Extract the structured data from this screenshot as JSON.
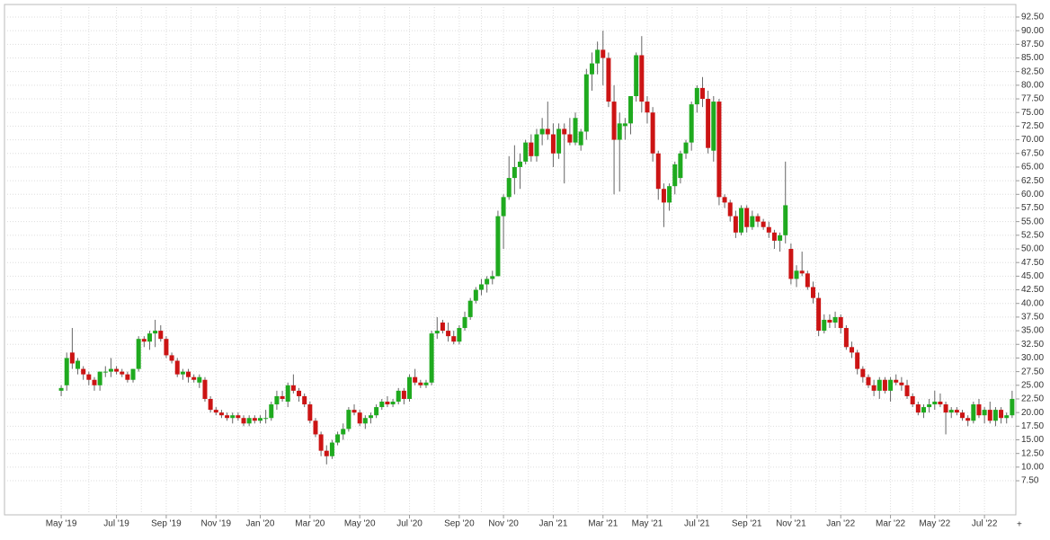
{
  "chart_data": {
    "type": "candlestick",
    "up_color": "#1faa1f",
    "down_color": "#cc1414",
    "wick_color": "#666666",
    "grid": true,
    "ylim": [
      1.25,
      94.8
    ],
    "yticks": [
      {
        "value": 7.5,
        "label": "7.50"
      },
      {
        "value": 10,
        "label": "10.00"
      },
      {
        "value": 12.5,
        "label": "12.50"
      },
      {
        "value": 15,
        "label": "15.00"
      },
      {
        "value": 17.5,
        "label": "17.50"
      },
      {
        "value": 20,
        "label": "20.00"
      },
      {
        "value": 22.5,
        "label": "22.50"
      },
      {
        "value": 25,
        "label": "25.00"
      },
      {
        "value": 27.5,
        "label": "27.50"
      },
      {
        "value": 30,
        "label": "30.00"
      },
      {
        "value": 32.5,
        "label": "32.50"
      },
      {
        "value": 35,
        "label": "35.00"
      },
      {
        "value": 37.5,
        "label": "37.50"
      },
      {
        "value": 40,
        "label": "40.00"
      },
      {
        "value": 42.5,
        "label": "42.50"
      },
      {
        "value": 45,
        "label": "45.00"
      },
      {
        "value": 47.5,
        "label": "47.50"
      },
      {
        "value": 50,
        "label": "50.00"
      },
      {
        "value": 52.5,
        "label": "52.50"
      },
      {
        "value": 55,
        "label": "55.00"
      },
      {
        "value": 57.5,
        "label": "57.50"
      },
      {
        "value": 60,
        "label": "60.00"
      },
      {
        "value": 62.5,
        "label": "62.50"
      },
      {
        "value": 65,
        "label": "65.00"
      },
      {
        "value": 67.5,
        "label": "67.50"
      },
      {
        "value": 70,
        "label": "70.00"
      },
      {
        "value": 72.5,
        "label": "72.50"
      },
      {
        "value": 75,
        "label": "75.00"
      },
      {
        "value": 77.5,
        "label": "77.50"
      },
      {
        "value": 80,
        "label": "80.00"
      },
      {
        "value": 82.5,
        "label": "82.50"
      },
      {
        "value": 85,
        "label": "85.00"
      },
      {
        "value": 87.5,
        "label": "87.50"
      },
      {
        "value": 90,
        "label": "90.00"
      },
      {
        "value": 92.5,
        "label": "92.50"
      }
    ],
    "categories": [
      "May '19",
      null,
      null,
      null,
      null,
      null,
      null,
      null,
      null,
      null,
      "Jul '19",
      null,
      null,
      null,
      null,
      null,
      null,
      null,
      null,
      "Sep '19",
      null,
      null,
      null,
      null,
      null,
      null,
      null,
      null,
      "Nov '19",
      null,
      null,
      null,
      null,
      null,
      null,
      null,
      "Jan '20",
      null,
      null,
      null,
      null,
      null,
      null,
      null,
      null,
      "Mar '20",
      null,
      null,
      null,
      null,
      null,
      null,
      null,
      null,
      "May '20",
      null,
      null,
      null,
      null,
      null,
      null,
      null,
      null,
      "Jul '20",
      null,
      null,
      null,
      null,
      null,
      null,
      null,
      null,
      "Sep '20",
      null,
      null,
      null,
      null,
      null,
      null,
      null,
      "Nov '20",
      null,
      null,
      null,
      null,
      null,
      null,
      null,
      null,
      "Jan '21",
      null,
      null,
      null,
      null,
      null,
      null,
      null,
      null,
      "Mar '21",
      null,
      null,
      null,
      null,
      null,
      null,
      null,
      "May '21",
      null,
      null,
      null,
      null,
      null,
      null,
      null,
      null,
      "Jul '21",
      null,
      null,
      null,
      null,
      null,
      null,
      null,
      null,
      "Sep '21",
      null,
      null,
      null,
      null,
      null,
      null,
      null,
      "Nov '21",
      null,
      null,
      null,
      null,
      null,
      null,
      null,
      null,
      "Jan '22",
      null,
      null,
      null,
      null,
      null,
      null,
      null,
      null,
      "Mar '22",
      null,
      null,
      null,
      null,
      null,
      null,
      null,
      "May '22",
      null,
      null,
      null,
      null,
      null,
      null,
      null,
      null,
      "Jul '22",
      null,
      null,
      null,
      null,
      null
    ],
    "ohlc": [
      [
        24,
        25,
        23,
        24.5
      ],
      [
        25,
        31,
        24,
        30
      ],
      [
        31,
        35.5,
        28,
        29
      ],
      [
        28,
        30,
        27,
        29.5
      ],
      [
        28,
        28.5,
        26,
        27
      ],
      [
        27,
        27.5,
        25,
        26
      ],
      [
        26,
        26.5,
        24,
        25
      ],
      [
        25,
        27.5,
        24,
        27.5
      ],
      [
        27.5,
        28.5,
        26.5,
        27.5
      ],
      [
        27.5,
        30,
        26.5,
        28
      ],
      [
        28,
        28.5,
        27,
        27.5
      ],
      [
        27.5,
        28,
        26.5,
        27
      ],
      [
        27,
        27.5,
        25.5,
        26
      ],
      [
        26,
        28,
        25.5,
        28
      ],
      [
        28,
        34,
        27.5,
        33.5
      ],
      [
        33.5,
        34,
        32,
        33
      ],
      [
        33,
        35,
        31.5,
        34.5
      ],
      [
        34.5,
        37,
        32,
        35
      ],
      [
        35,
        36,
        33,
        33.5
      ],
      [
        33.5,
        34,
        30,
        30.5
      ],
      [
        30.5,
        31,
        29,
        29.5
      ],
      [
        29.5,
        30,
        26.5,
        27
      ],
      [
        27,
        28,
        26,
        27.5
      ],
      [
        27.5,
        28,
        25.5,
        26.5
      ],
      [
        26.5,
        27,
        25.5,
        26
      ],
      [
        25.5,
        27,
        24.5,
        26.5
      ],
      [
        26,
        26.5,
        22,
        22.5
      ],
      [
        22.5,
        23,
        20,
        20.5
      ],
      [
        20.5,
        21,
        19.5,
        20
      ],
      [
        20,
        20.5,
        19,
        19.5
      ],
      [
        19.5,
        20,
        18.5,
        19
      ],
      [
        19,
        20,
        18,
        19.5
      ],
      [
        19.5,
        20,
        18.5,
        19
      ],
      [
        19,
        19.5,
        17.5,
        18
      ],
      [
        18,
        19.5,
        17.5,
        19
      ],
      [
        19,
        19.5,
        18,
        18.5
      ],
      [
        18.5,
        19.5,
        18,
        19
      ],
      [
        19,
        20.5,
        18,
        19
      ],
      [
        19,
        22,
        18.5,
        21.5
      ],
      [
        21.5,
        24,
        20.5,
        23
      ],
      [
        23,
        24,
        22,
        22.5
      ],
      [
        22,
        25.5,
        21,
        25
      ],
      [
        25,
        27,
        23.5,
        24
      ],
      [
        24,
        24.5,
        22,
        23
      ],
      [
        23,
        23.5,
        21,
        21.5
      ],
      [
        21.5,
        22,
        18,
        18.5
      ],
      [
        18.5,
        19,
        15.5,
        16
      ],
      [
        16,
        16.5,
        12,
        13
      ],
      [
        13,
        14,
        10.5,
        12
      ],
      [
        12,
        15,
        11.5,
        14.5
      ],
      [
        14.5,
        16.5,
        14,
        16
      ],
      [
        16,
        18,
        15,
        17
      ],
      [
        17,
        21,
        16.5,
        20.5
      ],
      [
        20.5,
        21.5,
        19.5,
        20
      ],
      [
        20,
        20.5,
        17.5,
        18
      ],
      [
        18,
        19.5,
        17,
        19
      ],
      [
        19,
        20,
        18,
        19.5
      ],
      [
        19.5,
        21.5,
        19,
        21
      ],
      [
        21,
        22.5,
        20.5,
        22
      ],
      [
        22,
        23,
        21,
        21.5
      ],
      [
        21.5,
        22.5,
        21,
        22
      ],
      [
        22,
        24.5,
        21.5,
        24
      ],
      [
        24,
        24.5,
        21.5,
        22.5
      ],
      [
        22.5,
        27,
        22,
        26.5
      ],
      [
        26.5,
        28,
        25,
        25.5
      ],
      [
        25.5,
        26,
        24.5,
        25
      ],
      [
        25,
        26,
        24.5,
        25.5
      ],
      [
        25.5,
        35,
        25,
        34.5
      ],
      [
        34.5,
        37.5,
        33.5,
        35
      ],
      [
        36.5,
        37,
        34.5,
        35
      ],
      [
        35,
        36.5,
        33,
        34
      ],
      [
        34,
        35,
        32.5,
        33
      ],
      [
        33,
        36,
        32.5,
        35.5
      ],
      [
        35.5,
        38.5,
        35,
        37.5
      ],
      [
        37.5,
        41,
        37,
        40.5
      ],
      [
        40.5,
        43,
        40,
        42.5
      ],
      [
        42.5,
        44.5,
        41.5,
        43.5
      ],
      [
        43.5,
        45,
        42,
        44.5
      ],
      [
        44.5,
        46,
        43.5,
        45
      ],
      [
        45,
        57,
        45,
        56
      ],
      [
        56,
        60,
        50,
        59.5
      ],
      [
        59.5,
        67,
        59,
        63
      ],
      [
        63,
        69,
        60,
        65
      ],
      [
        65,
        67.5,
        61,
        66
      ],
      [
        66,
        70,
        65.5,
        69.5
      ],
      [
        69.5,
        71,
        66,
        67
      ],
      [
        67,
        72,
        66,
        71
      ],
      [
        71,
        74,
        69,
        72
      ],
      [
        72,
        77,
        70,
        71
      ],
      [
        71,
        73,
        65,
        67.5
      ],
      [
        67.5,
        73,
        66.5,
        72
      ],
      [
        72,
        73,
        62,
        71
      ],
      [
        71,
        74,
        69,
        69.5
      ],
      [
        69.5,
        75,
        69,
        74
      ],
      [
        69,
        72,
        68,
        71.5
      ],
      [
        71.5,
        83,
        70,
        82
      ],
      [
        82,
        86,
        79,
        84
      ],
      [
        84,
        88,
        82,
        86.5
      ],
      [
        86.5,
        90,
        80,
        85
      ],
      [
        85,
        86,
        76,
        77
      ],
      [
        77,
        80,
        60,
        70
      ],
      [
        70,
        75,
        60.5,
        73
      ],
      [
        72.5,
        74,
        70,
        73
      ],
      [
        73,
        78,
        71,
        78
      ],
      [
        78,
        86,
        77,
        85.5
      ],
      [
        85.5,
        89,
        75,
        77
      ],
      [
        77,
        78,
        73,
        75
      ],
      [
        75,
        76,
        66,
        67.5
      ],
      [
        67.5,
        68,
        59,
        61
      ],
      [
        61,
        62,
        54,
        58.5
      ],
      [
        58.5,
        62,
        57,
        61.5
      ],
      [
        61.5,
        66,
        60,
        65.5
      ],
      [
        63,
        68,
        62,
        67.5
      ],
      [
        67.5,
        70,
        66.5,
        69.5
      ],
      [
        69.5,
        77,
        68,
        76.5
      ],
      [
        76.5,
        80,
        75,
        79.5
      ],
      [
        79.5,
        81.5,
        76,
        77.5
      ],
      [
        77.5,
        79,
        67.5,
        68.5
      ],
      [
        68,
        78,
        66,
        77
      ],
      [
        77,
        77.5,
        58,
        59.5
      ],
      [
        59.5,
        60,
        57.5,
        58.5
      ],
      [
        58.5,
        59,
        55,
        56
      ],
      [
        56,
        57,
        52,
        53
      ],
      [
        53,
        58,
        52.5,
        57.5
      ],
      [
        57.5,
        58,
        53,
        54
      ],
      [
        54,
        57,
        53.5,
        56
      ],
      [
        56,
        56.5,
        54,
        55
      ],
      [
        55,
        55.5,
        53.5,
        54
      ],
      [
        54,
        55,
        52,
        53
      ],
      [
        53,
        53.5,
        50,
        51.5
      ],
      [
        51.5,
        53,
        49.5,
        52.5
      ],
      [
        52.5,
        66,
        51,
        58
      ],
      [
        50,
        51,
        43.5,
        44.5
      ],
      [
        44.5,
        47,
        43,
        46
      ],
      [
        46,
        49.5,
        45,
        45.5
      ],
      [
        45.5,
        46,
        42.5,
        43
      ],
      [
        43,
        44,
        40,
        41
      ],
      [
        41,
        42,
        34,
        35
      ],
      [
        35,
        38,
        34.5,
        37
      ],
      [
        37,
        38,
        35.5,
        36.5
      ],
      [
        36.5,
        38.5,
        35.5,
        37.5
      ],
      [
        37.5,
        38,
        34.5,
        35.5
      ],
      [
        35.5,
        36,
        31.5,
        32
      ],
      [
        32,
        33,
        30,
        31
      ],
      [
        31,
        31.5,
        27,
        28
      ],
      [
        28,
        28.5,
        25.5,
        26.5
      ],
      [
        26.5,
        27,
        24.5,
        25
      ],
      [
        25,
        26,
        23,
        24
      ],
      [
        24,
        26.5,
        22.5,
        26
      ],
      [
        26,
        26.5,
        23.5,
        24
      ],
      [
        24,
        26.5,
        22,
        26
      ],
      [
        26,
        27,
        25,
        25.5
      ],
      [
        25.5,
        26.5,
        24,
        25
      ],
      [
        25,
        26,
        22.5,
        23
      ],
      [
        23,
        23.5,
        21,
        21.5
      ],
      [
        21.5,
        22,
        19.5,
        20
      ],
      [
        20,
        21.5,
        19,
        21
      ],
      [
        21,
        22.5,
        20,
        21.5
      ],
      [
        21.5,
        24,
        20.5,
        22
      ],
      [
        22,
        23.5,
        21,
        21.5
      ],
      [
        21.5,
        22,
        16,
        20
      ],
      [
        20,
        21,
        19,
        20.5
      ],
      [
        20.5,
        21,
        19.5,
        20
      ],
      [
        20,
        20.5,
        18.5,
        19
      ],
      [
        19,
        19.5,
        17.5,
        18.5
      ],
      [
        18.5,
        22,
        18,
        21.5
      ],
      [
        21.5,
        22.5,
        19,
        19.5
      ],
      [
        19.5,
        21,
        18,
        20.5
      ],
      [
        20.5,
        22,
        18,
        18.5
      ],
      [
        18.5,
        21,
        17.5,
        20.5
      ],
      [
        20.5,
        21,
        18,
        19
      ],
      [
        19,
        20,
        18,
        19.5
      ],
      [
        19.5,
        24,
        19,
        22.5
      ]
    ]
  }
}
